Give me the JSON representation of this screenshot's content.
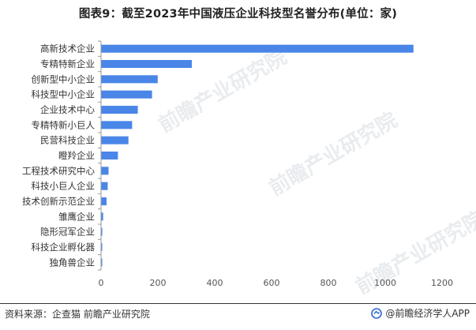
{
  "title": "图表9：截至2023年中国液压企业科技型名誉分布(单位：家)",
  "footer": {
    "source": "资料来源：企查猫 前瞻产业研究院",
    "brand": "@前瞻经济学人APP"
  },
  "watermark": "前瞻产业研究院",
  "colors": {
    "bar": "#4A86E8",
    "axis": "#999999",
    "text": "#333333"
  },
  "chart_data": {
    "type": "bar",
    "orientation": "horizontal",
    "categories": [
      "高新技术企业",
      "专精特新企业",
      "创新型中小企业",
      "科技型中小企业",
      "企业技术中心",
      "专精特新小巨人",
      "民营科技企业",
      "瞪羚企业",
      "工程技术研究中心",
      "科技小巨人企业",
      "技术创新示范企业",
      "雏鹰企业",
      "隐形冠军企业",
      "科技企业孵化器",
      "独角兽企业"
    ],
    "values": [
      1098,
      318,
      198,
      178,
      128,
      108,
      95,
      58,
      25,
      22,
      18,
      6,
      3,
      2,
      1
    ],
    "xticks": [
      0,
      200,
      400,
      600,
      800,
      1000,
      1200
    ],
    "xlim": [
      0,
      1200
    ],
    "title": "图表9：截至2023年中国液压企业科技型名誉分布(单位：家)",
    "xlabel": "",
    "ylabel": "",
    "grid": false
  }
}
